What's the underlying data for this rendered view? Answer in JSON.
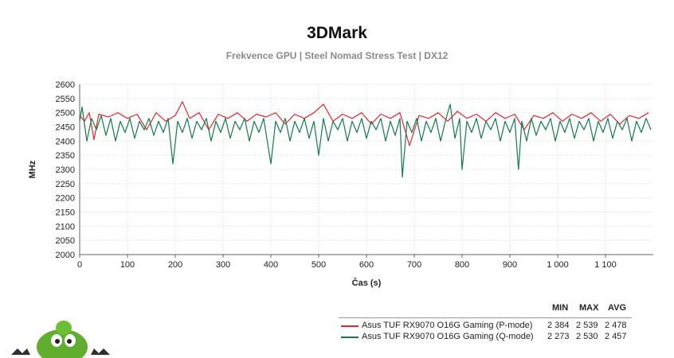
{
  "chart_data": {
    "type": "line",
    "title": "3DMark",
    "subtitle": "Frekvence GPU | Steel Nomad Stress Test | DX12",
    "xlabel": "Čas (s)",
    "ylabel": "MHz",
    "xlim": [
      0,
      1200
    ],
    "ylim": [
      2000,
      2600
    ],
    "x_ticks": [
      0,
      100,
      200,
      300,
      400,
      500,
      600,
      700,
      800,
      900,
      1000,
      1100
    ],
    "x_tick_labels": [
      "0",
      "100",
      "200",
      "300",
      "400",
      "500",
      "600",
      "700",
      "800",
      "900",
      "1 000",
      "1 100"
    ],
    "y_ticks": [
      2000,
      2050,
      2100,
      2150,
      2200,
      2250,
      2300,
      2350,
      2400,
      2450,
      2500,
      2550,
      2600
    ],
    "grid": true,
    "legend": {
      "placement": "bottom-right",
      "headers": [
        "MIN",
        "MAX",
        "AVG"
      ]
    },
    "series": [
      {
        "name": "Asus TUF RX9070 O16G Gaming (P-mode)",
        "color": "#e8252a",
        "min": "2 384",
        "max": "2 539",
        "avg": "2 478",
        "values": [
          [
            0,
            2490
          ],
          [
            10,
            2470
          ],
          [
            20,
            2500
          ],
          [
            30,
            2405
          ],
          [
            40,
            2495
          ],
          [
            60,
            2485
          ],
          [
            80,
            2500
          ],
          [
            100,
            2480
          ],
          [
            120,
            2495
          ],
          [
            140,
            2440
          ],
          [
            160,
            2500
          ],
          [
            180,
            2470
          ],
          [
            200,
            2490
          ],
          [
            215,
            2539
          ],
          [
            230,
            2480
          ],
          [
            250,
            2500
          ],
          [
            270,
            2440
          ],
          [
            290,
            2495
          ],
          [
            310,
            2480
          ],
          [
            330,
            2500
          ],
          [
            350,
            2470
          ],
          [
            370,
            2495
          ],
          [
            390,
            2485
          ],
          [
            410,
            2500
          ],
          [
            430,
            2460
          ],
          [
            450,
            2495
          ],
          [
            470,
            2480
          ],
          [
            490,
            2500
          ],
          [
            510,
            2530
          ],
          [
            530,
            2470
          ],
          [
            550,
            2495
          ],
          [
            570,
            2480
          ],
          [
            590,
            2500
          ],
          [
            610,
            2460
          ],
          [
            630,
            2495
          ],
          [
            650,
            2480
          ],
          [
            670,
            2500
          ],
          [
            690,
            2384
          ],
          [
            710,
            2490
          ],
          [
            730,
            2480
          ],
          [
            750,
            2500
          ],
          [
            770,
            2470
          ],
          [
            790,
            2505
          ],
          [
            810,
            2480
          ],
          [
            830,
            2495
          ],
          [
            850,
            2470
          ],
          [
            870,
            2500
          ],
          [
            890,
            2480
          ],
          [
            910,
            2495
          ],
          [
            930,
            2440
          ],
          [
            950,
            2490
          ],
          [
            970,
            2480
          ],
          [
            990,
            2500
          ],
          [
            1010,
            2470
          ],
          [
            1030,
            2495
          ],
          [
            1050,
            2480
          ],
          [
            1070,
            2500
          ],
          [
            1090,
            2470
          ],
          [
            1110,
            2495
          ],
          [
            1130,
            2460
          ],
          [
            1150,
            2490
          ],
          [
            1170,
            2480
          ],
          [
            1190,
            2500
          ]
        ]
      },
      {
        "name": "Asus TUF RX9070 O16G Gaming (Q-mode)",
        "color": "#137a4e",
        "min": "2 273",
        "max": "2 530",
        "avg": "2 457",
        "values": [
          [
            0,
            2470
          ],
          [
            5,
            2520
          ],
          [
            15,
            2400
          ],
          [
            25,
            2480
          ],
          [
            35,
            2440
          ],
          [
            45,
            2490
          ],
          [
            55,
            2420
          ],
          [
            65,
            2480
          ],
          [
            75,
            2400
          ],
          [
            85,
            2470
          ],
          [
            95,
            2430
          ],
          [
            105,
            2480
          ],
          [
            115,
            2410
          ],
          [
            125,
            2470
          ],
          [
            135,
            2440
          ],
          [
            145,
            2480
          ],
          [
            155,
            2420
          ],
          [
            165,
            2470
          ],
          [
            175,
            2430
          ],
          [
            185,
            2480
          ],
          [
            195,
            2320
          ],
          [
            205,
            2470
          ],
          [
            215,
            2430
          ],
          [
            225,
            2480
          ],
          [
            235,
            2410
          ],
          [
            245,
            2470
          ],
          [
            255,
            2440
          ],
          [
            265,
            2480
          ],
          [
            275,
            2400
          ],
          [
            285,
            2470
          ],
          [
            295,
            2430
          ],
          [
            305,
            2480
          ],
          [
            315,
            2410
          ],
          [
            325,
            2470
          ],
          [
            335,
            2440
          ],
          [
            345,
            2480
          ],
          [
            355,
            2400
          ],
          [
            365,
            2470
          ],
          [
            375,
            2430
          ],
          [
            385,
            2480
          ],
          [
            400,
            2320
          ],
          [
            410,
            2470
          ],
          [
            420,
            2430
          ],
          [
            430,
            2480
          ],
          [
            440,
            2400
          ],
          [
            450,
            2470
          ],
          [
            460,
            2430
          ],
          [
            470,
            2480
          ],
          [
            480,
            2410
          ],
          [
            490,
            2470
          ],
          [
            500,
            2350
          ],
          [
            510,
            2480
          ],
          [
            520,
            2400
          ],
          [
            530,
            2470
          ],
          [
            540,
            2440
          ],
          [
            550,
            2480
          ],
          [
            560,
            2400
          ],
          [
            570,
            2470
          ],
          [
            580,
            2430
          ],
          [
            590,
            2480
          ],
          [
            600,
            2410
          ],
          [
            610,
            2470
          ],
          [
            620,
            2440
          ],
          [
            630,
            2480
          ],
          [
            640,
            2400
          ],
          [
            650,
            2470
          ],
          [
            660,
            2420
          ],
          [
            670,
            2480
          ],
          [
            675,
            2273
          ],
          [
            685,
            2470
          ],
          [
            695,
            2430
          ],
          [
            705,
            2480
          ],
          [
            715,
            2400
          ],
          [
            725,
            2470
          ],
          [
            735,
            2430
          ],
          [
            745,
            2480
          ],
          [
            755,
            2400
          ],
          [
            765,
            2470
          ],
          [
            775,
            2530
          ],
          [
            785,
            2410
          ],
          [
            795,
            2480
          ],
          [
            800,
            2300
          ],
          [
            810,
            2470
          ],
          [
            820,
            2430
          ],
          [
            830,
            2480
          ],
          [
            840,
            2410
          ],
          [
            850,
            2470
          ],
          [
            860,
            2440
          ],
          [
            870,
            2480
          ],
          [
            880,
            2400
          ],
          [
            890,
            2470
          ],
          [
            900,
            2430
          ],
          [
            910,
            2480
          ],
          [
            918,
            2300
          ],
          [
            925,
            2470
          ],
          [
            935,
            2400
          ],
          [
            945,
            2480
          ],
          [
            955,
            2420
          ],
          [
            965,
            2470
          ],
          [
            975,
            2440
          ],
          [
            985,
            2480
          ],
          [
            995,
            2400
          ],
          [
            1005,
            2470
          ],
          [
            1015,
            2430
          ],
          [
            1025,
            2480
          ],
          [
            1035,
            2410
          ],
          [
            1045,
            2470
          ],
          [
            1055,
            2440
          ],
          [
            1065,
            2480
          ],
          [
            1075,
            2400
          ],
          [
            1085,
            2470
          ],
          [
            1095,
            2430
          ],
          [
            1105,
            2480
          ],
          [
            1115,
            2410
          ],
          [
            1125,
            2470
          ],
          [
            1135,
            2440
          ],
          [
            1145,
            2480
          ],
          [
            1155,
            2400
          ],
          [
            1165,
            2470
          ],
          [
            1175,
            2430
          ],
          [
            1185,
            2480
          ],
          [
            1195,
            2440
          ]
        ]
      }
    ]
  }
}
